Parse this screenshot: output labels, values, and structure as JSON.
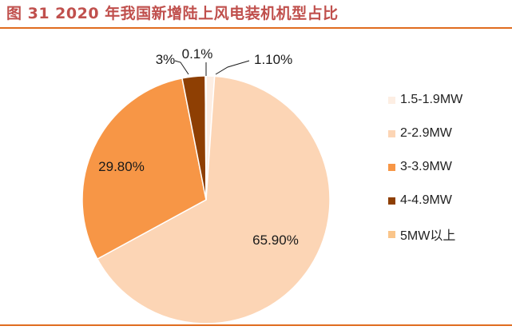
{
  "title": "图 31 2020 年我国新增陆上风电装机机型占比",
  "colors": {
    "accent": "#e06c1f",
    "title": "#c0504d"
  },
  "chart_data": {
    "type": "pie",
    "title": "图 31 2020 年我国新增陆上风电装机机型占比",
    "legend_position": "right",
    "slices": [
      {
        "name": "1.5-1.9MW",
        "value": 1.1,
        "label": "1.10%",
        "color": "#fdeee3"
      },
      {
        "name": "2-2.9MW",
        "value": 65.9,
        "label": "65.90%",
        "color": "#fcd5b5"
      },
      {
        "name": "3-3.9MW",
        "value": 29.8,
        "label": "29.80%",
        "color": "#f79646"
      },
      {
        "name": "4-4.9MW",
        "value": 3,
        "label": "3%",
        "color": "#8e3f03"
      },
      {
        "name": "5MW以上",
        "value": 0.1,
        "label": "0.1%",
        "color": "#fac58a"
      }
    ]
  }
}
